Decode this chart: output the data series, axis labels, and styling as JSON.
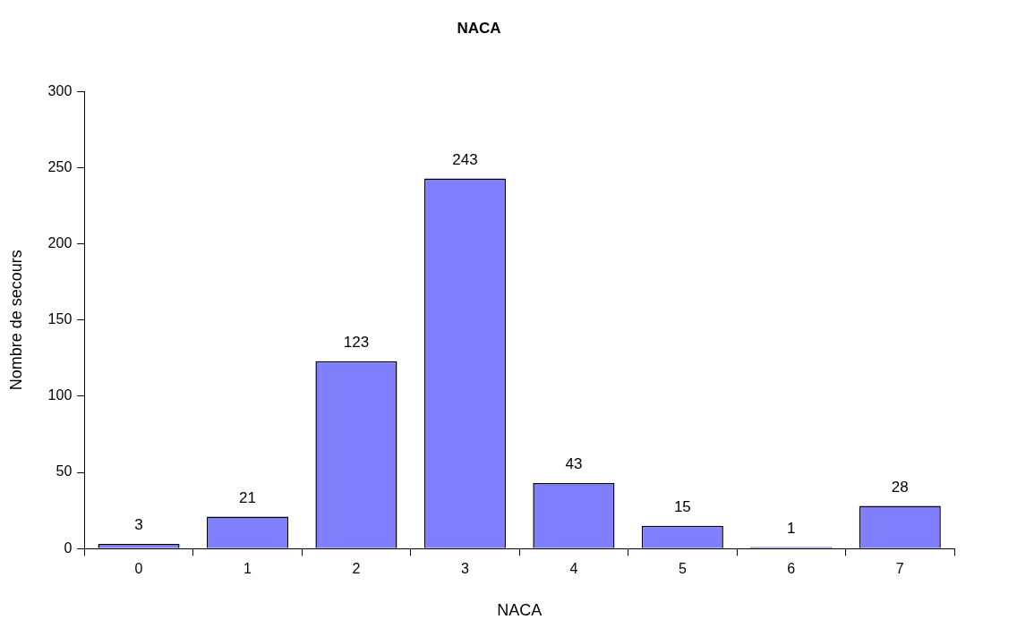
{
  "chart_data": {
    "type": "bar",
    "title": "NACA",
    "xlabel": "NACA",
    "ylabel": "Nombre de secours",
    "categories": [
      "0",
      "1",
      "2",
      "3",
      "4",
      "5",
      "6",
      "7"
    ],
    "values": [
      3,
      21,
      123,
      243,
      43,
      15,
      1,
      28
    ],
    "color": "#8080ff",
    "ylim": [
      0,
      300
    ],
    "yticks": [
      0,
      50,
      100,
      150,
      200,
      250,
      300
    ],
    "grid": false,
    "legend": false,
    "data_labels": true
  }
}
